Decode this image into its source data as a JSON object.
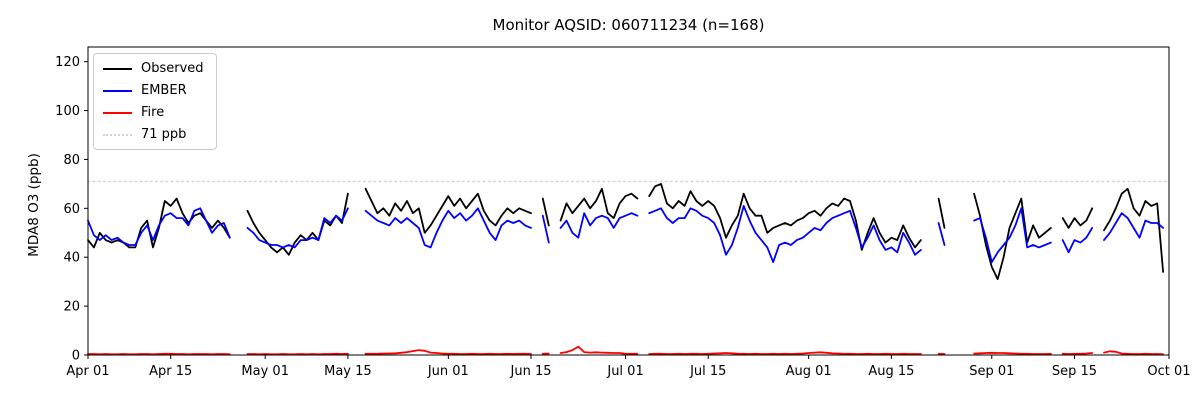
{
  "monitor_aqsid": "060711234",
  "n_points": 168,
  "chart_data": {
    "type": "line",
    "title": "Monitor AQSID: 060711234 (n=168)",
    "xlabel": "",
    "ylabel": "MDA8 O3 (ppb)",
    "ylim": [
      0,
      126
    ],
    "yticks": [
      0,
      20,
      40,
      60,
      80,
      100,
      120
    ],
    "xtick_labels": [
      "Apr 01",
      "Apr 15",
      "May 01",
      "May 15",
      "Jun 01",
      "Jun 15",
      "Jul 01",
      "Jul 15",
      "Aug 01",
      "Aug 15",
      "Sep 01",
      "Sep 15",
      "Oct 01"
    ],
    "xtick_days": [
      0,
      14,
      30,
      44,
      61,
      75,
      91,
      105,
      122,
      136,
      153,
      167,
      183
    ],
    "x_axis": {
      "start": "Apr 01",
      "end": "Sep 30",
      "total_days": 183,
      "unit": "day"
    },
    "grid": false,
    "legend_position": "upper left",
    "reference_line": {
      "label": "71 ppb",
      "value": 71,
      "color": "#d3d3d3",
      "style": "dotted"
    },
    "series": [
      {
        "name": "Observed",
        "color": "#000000",
        "values": [
          47,
          44,
          50,
          47,
          46,
          47,
          46,
          44,
          44,
          52,
          55,
          44,
          52,
          63,
          61,
          64,
          58,
          54,
          57,
          58,
          55,
          52,
          55,
          52,
          48,
          null,
          null,
          59,
          54,
          50,
          47,
          44,
          42,
          44,
          41,
          46,
          49,
          47,
          50,
          47,
          55,
          53,
          57,
          54,
          66,
          null,
          null,
          68,
          63,
          58,
          60,
          57,
          62,
          59,
          63,
          58,
          60,
          50,
          53,
          57,
          61,
          65,
          61,
          64,
          60,
          63,
          66,
          59,
          55,
          53,
          57,
          60,
          58,
          60,
          59,
          58,
          null,
          64,
          53,
          null,
          55,
          62,
          58,
          61,
          64,
          60,
          63,
          68,
          58,
          56,
          62,
          65,
          66,
          64,
          null,
          65,
          69,
          70,
          62,
          60,
          63,
          61,
          67,
          63,
          61,
          63,
          61,
          56,
          48,
          53,
          57,
          66,
          60,
          57,
          57,
          50,
          52,
          53,
          54,
          53,
          55,
          56,
          58,
          59,
          57,
          60,
          62,
          61,
          64,
          63,
          55,
          43,
          50,
          56,
          50,
          46,
          48,
          47,
          53,
          48,
          44,
          47,
          null,
          null,
          64,
          52,
          null,
          null,
          null,
          null,
          66,
          57,
          45,
          36,
          31,
          40,
          52,
          58,
          64,
          46,
          53,
          48,
          50,
          52,
          null,
          56,
          52,
          56,
          53,
          55,
          60,
          null,
          51,
          55,
          60,
          66,
          68,
          60,
          57,
          63,
          61,
          62,
          34
        ]
      },
      {
        "name": "EMBER",
        "color": "#0000ff",
        "values": [
          55,
          49,
          47,
          49,
          47,
          48,
          46,
          45,
          45,
          50,
          53,
          47,
          53,
          57,
          58,
          56,
          56,
          53,
          59,
          60,
          55,
          50,
          53,
          54,
          48,
          null,
          null,
          52,
          50,
          47,
          46,
          45,
          45,
          44,
          45,
          44,
          47,
          47,
          48,
          47,
          56,
          54,
          57,
          55,
          60,
          null,
          null,
          59,
          57,
          55,
          54,
          53,
          56,
          54,
          56,
          54,
          52,
          45,
          44,
          50,
          55,
          59,
          56,
          58,
          55,
          57,
          60,
          55,
          50,
          47,
          53,
          55,
          54,
          55,
          53,
          52,
          null,
          57,
          46,
          null,
          52,
          55,
          50,
          48,
          58,
          53,
          56,
          57,
          56,
          52,
          56,
          57,
          58,
          57,
          null,
          58,
          59,
          60,
          56,
          54,
          56,
          56,
          60,
          59,
          57,
          56,
          54,
          49,
          41,
          45,
          52,
          61,
          55,
          50,
          47,
          44,
          38,
          45,
          46,
          45,
          47,
          48,
          50,
          52,
          51,
          54,
          56,
          57,
          58,
          59,
          52,
          44,
          48,
          53,
          47,
          43,
          44,
          42,
          50,
          46,
          41,
          43,
          null,
          null,
          54,
          45,
          null,
          null,
          null,
          null,
          55,
          56,
          48,
          38,
          42,
          45,
          48,
          53,
          60,
          44,
          45,
          44,
          45,
          46,
          null,
          47,
          42,
          47,
          46,
          48,
          52,
          null,
          47,
          50,
          54,
          58,
          56,
          52,
          48,
          55,
          54,
          54,
          52
        ]
      },
      {
        "name": "Fire",
        "color": "#ff0000",
        "values": [
          0.4,
          0.4,
          0.3,
          0.4,
          0.3,
          0.3,
          0.4,
          0.3,
          0.3,
          0.4,
          0.4,
          0.3,
          0.4,
          0.5,
          0.5,
          0.4,
          0.4,
          0.3,
          0.4,
          0.4,
          0.4,
          0.3,
          0.4,
          0.4,
          0.3,
          null,
          null,
          0.4,
          0.4,
          0.3,
          0.4,
          0.3,
          0.3,
          0.4,
          0.3,
          0.3,
          0.4,
          0.3,
          0.4,
          0.3,
          0.4,
          0.4,
          0.5,
          0.4,
          0.5,
          null,
          null,
          0.5,
          0.5,
          0.5,
          0.6,
          0.6,
          0.7,
          0.9,
          1.2,
          1.6,
          2.0,
          1.7,
          1.0,
          0.8,
          0.6,
          0.5,
          0.5,
          0.4,
          0.4,
          0.5,
          0.4,
          0.4,
          0.5,
          0.4,
          0.4,
          0.5,
          0.4,
          0.5,
          0.5,
          0.4,
          null,
          0.5,
          0.6,
          null,
          0.8,
          1.2,
          2.0,
          3.4,
          1.2,
          1.0,
          1.1,
          1.0,
          0.9,
          0.8,
          0.8,
          0.5,
          0.5,
          0.5,
          null,
          0.4,
          0.5,
          0.5,
          0.4,
          0.4,
          0.5,
          0.4,
          0.5,
          0.5,
          0.4,
          0.5,
          0.6,
          0.7,
          0.8,
          0.7,
          0.5,
          0.5,
          0.4,
          0.5,
          0.4,
          0.4,
          0.5,
          0.4,
          0.5,
          0.4,
          0.5,
          0.6,
          0.8,
          1.0,
          1.1,
          0.9,
          0.7,
          0.6,
          0.5,
          0.5,
          0.4,
          0.4,
          0.5,
          0.4,
          0.4,
          0.5,
          0.4,
          0.4,
          0.5,
          0.4,
          0.4,
          0.4,
          null,
          null,
          0.5,
          0.4,
          null,
          null,
          null,
          null,
          0.6,
          0.7,
          0.8,
          0.9,
          0.8,
          0.8,
          0.7,
          0.6,
          0.5,
          0.5,
          0.4,
          0.4,
          0.4,
          0.5,
          null,
          0.5,
          0.4,
          0.5,
          0.5,
          0.6,
          0.8,
          null,
          1.0,
          1.5,
          1.3,
          0.6,
          0.5,
          0.4,
          0.4,
          0.5,
          0.4,
          0.4,
          0.3
        ]
      }
    ]
  },
  "legend": {
    "entries": [
      {
        "label": "Observed",
        "color": "#000000",
        "style": "solid"
      },
      {
        "label": "EMBER",
        "color": "#0000ff",
        "style": "solid"
      },
      {
        "label": "Fire",
        "color": "#ff0000",
        "style": "solid"
      },
      {
        "label": "71 ppb",
        "color": "#d3d3d3",
        "style": "dotted"
      }
    ]
  }
}
